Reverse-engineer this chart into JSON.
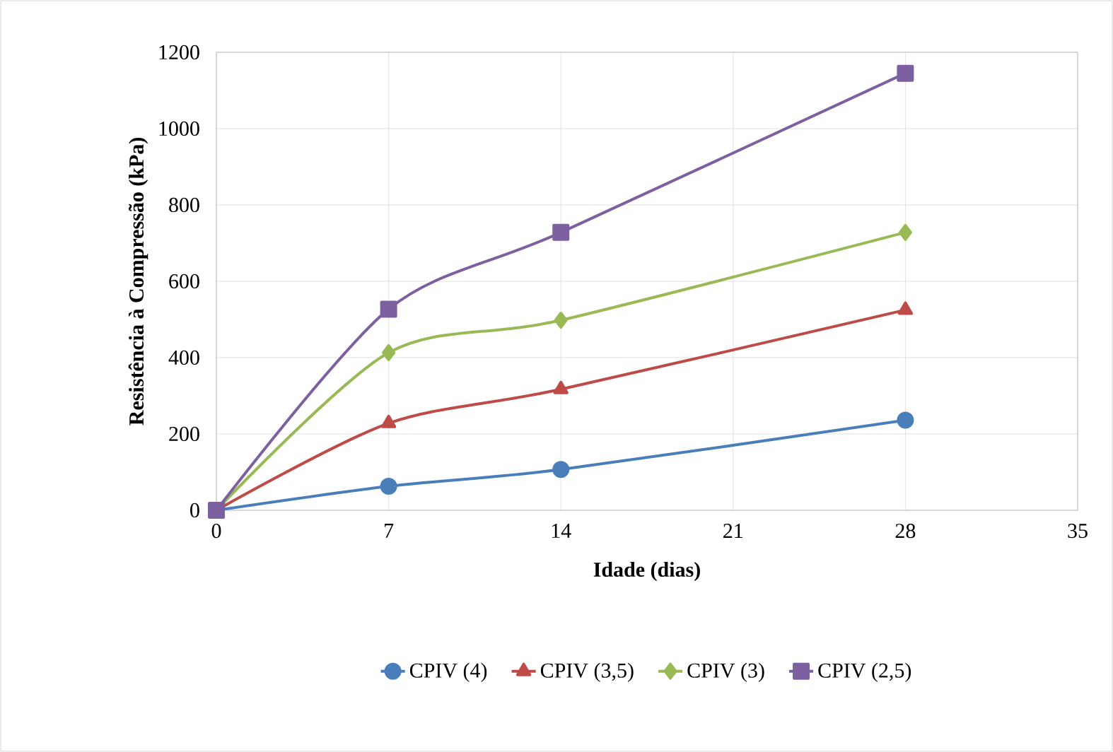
{
  "chart_data": {
    "type": "line",
    "xlabel": "Idade (dias)",
    "ylabel": "Resistência à Compressão (kPa)",
    "x": [
      0,
      7,
      14,
      28
    ],
    "series": [
      {
        "name": "CPIV (4)",
        "color": "#4a7ebb",
        "marker": "circle",
        "values": [
          0,
          63,
          107,
          236
        ]
      },
      {
        "name": "CPIV (3,5)",
        "color": "#be4b48",
        "marker": "triangle",
        "values": [
          0,
          228,
          317,
          525
        ]
      },
      {
        "name": "CPIV (3)",
        "color": "#98b954",
        "marker": "diamond",
        "values": [
          0,
          413,
          498,
          728
        ]
      },
      {
        "name": "CPIV (2,5)",
        "color": "#7d60a0",
        "marker": "square",
        "values": [
          0,
          527,
          728,
          1145
        ]
      }
    ],
    "xlim": [
      0,
      35
    ],
    "xticks": [
      0,
      7,
      14,
      21,
      28,
      35
    ],
    "ylim": [
      0,
      1200
    ],
    "yticks": [
      0,
      200,
      400,
      600,
      800,
      1000,
      1200
    ],
    "grid": true,
    "legend": "bottom",
    "line_style": "solid"
  }
}
